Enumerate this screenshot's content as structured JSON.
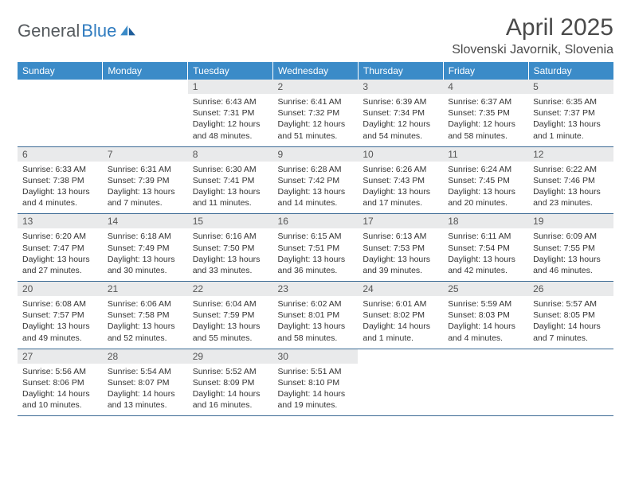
{
  "brand": {
    "part1": "General",
    "part2": "Blue"
  },
  "title": "April 2025",
  "subtitle": "Slovenski Javornik, Slovenia",
  "colors": {
    "header_bg": "#3b8bc8",
    "header_text": "#ffffff",
    "daynum_bg": "#e9eaeb",
    "rule": "#3b6a94",
    "brand_gray": "#555a5e",
    "brand_blue": "#2f7bbf"
  },
  "weekdays": [
    "Sunday",
    "Monday",
    "Tuesday",
    "Wednesday",
    "Thursday",
    "Friday",
    "Saturday"
  ],
  "weeks": [
    [
      {
        "empty": true
      },
      {
        "empty": true
      },
      {
        "day": "1",
        "sunrise": "6:43 AM",
        "sunset": "7:31 PM",
        "daylight": "12 hours and 48 minutes."
      },
      {
        "day": "2",
        "sunrise": "6:41 AM",
        "sunset": "7:32 PM",
        "daylight": "12 hours and 51 minutes."
      },
      {
        "day": "3",
        "sunrise": "6:39 AM",
        "sunset": "7:34 PM",
        "daylight": "12 hours and 54 minutes."
      },
      {
        "day": "4",
        "sunrise": "6:37 AM",
        "sunset": "7:35 PM",
        "daylight": "12 hours and 58 minutes."
      },
      {
        "day": "5",
        "sunrise": "6:35 AM",
        "sunset": "7:37 PM",
        "daylight": "13 hours and 1 minute."
      }
    ],
    [
      {
        "day": "6",
        "sunrise": "6:33 AM",
        "sunset": "7:38 PM",
        "daylight": "13 hours and 4 minutes."
      },
      {
        "day": "7",
        "sunrise": "6:31 AM",
        "sunset": "7:39 PM",
        "daylight": "13 hours and 7 minutes."
      },
      {
        "day": "8",
        "sunrise": "6:30 AM",
        "sunset": "7:41 PM",
        "daylight": "13 hours and 11 minutes."
      },
      {
        "day": "9",
        "sunrise": "6:28 AM",
        "sunset": "7:42 PM",
        "daylight": "13 hours and 14 minutes."
      },
      {
        "day": "10",
        "sunrise": "6:26 AM",
        "sunset": "7:43 PM",
        "daylight": "13 hours and 17 minutes."
      },
      {
        "day": "11",
        "sunrise": "6:24 AM",
        "sunset": "7:45 PM",
        "daylight": "13 hours and 20 minutes."
      },
      {
        "day": "12",
        "sunrise": "6:22 AM",
        "sunset": "7:46 PM",
        "daylight": "13 hours and 23 minutes."
      }
    ],
    [
      {
        "day": "13",
        "sunrise": "6:20 AM",
        "sunset": "7:47 PM",
        "daylight": "13 hours and 27 minutes."
      },
      {
        "day": "14",
        "sunrise": "6:18 AM",
        "sunset": "7:49 PM",
        "daylight": "13 hours and 30 minutes."
      },
      {
        "day": "15",
        "sunrise": "6:16 AM",
        "sunset": "7:50 PM",
        "daylight": "13 hours and 33 minutes."
      },
      {
        "day": "16",
        "sunrise": "6:15 AM",
        "sunset": "7:51 PM",
        "daylight": "13 hours and 36 minutes."
      },
      {
        "day": "17",
        "sunrise": "6:13 AM",
        "sunset": "7:53 PM",
        "daylight": "13 hours and 39 minutes."
      },
      {
        "day": "18",
        "sunrise": "6:11 AM",
        "sunset": "7:54 PM",
        "daylight": "13 hours and 42 minutes."
      },
      {
        "day": "19",
        "sunrise": "6:09 AM",
        "sunset": "7:55 PM",
        "daylight": "13 hours and 46 minutes."
      }
    ],
    [
      {
        "day": "20",
        "sunrise": "6:08 AM",
        "sunset": "7:57 PM",
        "daylight": "13 hours and 49 minutes."
      },
      {
        "day": "21",
        "sunrise": "6:06 AM",
        "sunset": "7:58 PM",
        "daylight": "13 hours and 52 minutes."
      },
      {
        "day": "22",
        "sunrise": "6:04 AM",
        "sunset": "7:59 PM",
        "daylight": "13 hours and 55 minutes."
      },
      {
        "day": "23",
        "sunrise": "6:02 AM",
        "sunset": "8:01 PM",
        "daylight": "13 hours and 58 minutes."
      },
      {
        "day": "24",
        "sunrise": "6:01 AM",
        "sunset": "8:02 PM",
        "daylight": "14 hours and 1 minute."
      },
      {
        "day": "25",
        "sunrise": "5:59 AM",
        "sunset": "8:03 PM",
        "daylight": "14 hours and 4 minutes."
      },
      {
        "day": "26",
        "sunrise": "5:57 AM",
        "sunset": "8:05 PM",
        "daylight": "14 hours and 7 minutes."
      }
    ],
    [
      {
        "day": "27",
        "sunrise": "5:56 AM",
        "sunset": "8:06 PM",
        "daylight": "14 hours and 10 minutes."
      },
      {
        "day": "28",
        "sunrise": "5:54 AM",
        "sunset": "8:07 PM",
        "daylight": "14 hours and 13 minutes."
      },
      {
        "day": "29",
        "sunrise": "5:52 AM",
        "sunset": "8:09 PM",
        "daylight": "14 hours and 16 minutes."
      },
      {
        "day": "30",
        "sunrise": "5:51 AM",
        "sunset": "8:10 PM",
        "daylight": "14 hours and 19 minutes."
      },
      {
        "empty": true
      },
      {
        "empty": true
      },
      {
        "empty": true
      }
    ]
  ],
  "labels": {
    "sunrise": "Sunrise:",
    "sunset": "Sunset:",
    "daylight": "Daylight:"
  }
}
